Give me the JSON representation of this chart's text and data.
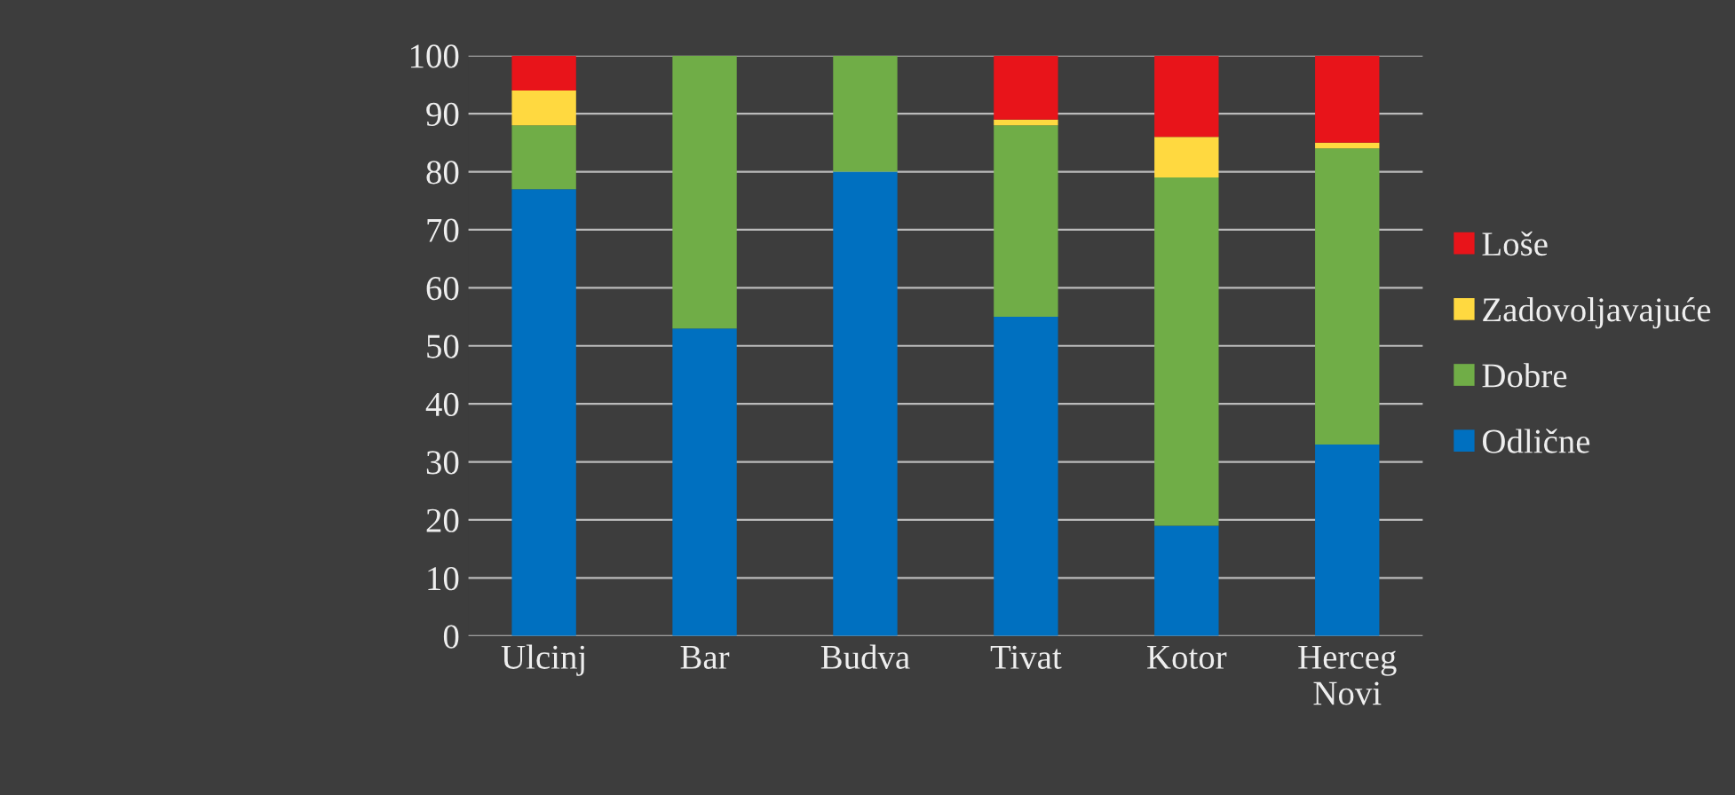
{
  "chart_data": {
    "type": "bar",
    "stacked": true,
    "categories": [
      "Ulcinj",
      "Bar",
      "Budva",
      "Tivat",
      "Kotor",
      "Herceg\nNovi"
    ],
    "series": [
      {
        "name": "Odlične",
        "color": "#0070c0",
        "values": [
          77,
          53,
          80,
          55,
          19,
          33
        ]
      },
      {
        "name": "Dobre",
        "color": "#70ad47",
        "values": [
          11,
          47,
          20,
          33,
          60,
          51
        ]
      },
      {
        "name": "Zadovoljavajuće",
        "color": "#ffd940",
        "values": [
          6,
          0,
          0,
          1,
          7,
          1
        ]
      },
      {
        "name": "Loše",
        "color": "#e8141a",
        "values": [
          6,
          0,
          0,
          11,
          14,
          15
        ]
      }
    ],
    "ylim": [
      0,
      100
    ],
    "yticks": [
      0,
      10,
      20,
      30,
      40,
      50,
      60,
      70,
      80,
      90,
      100
    ],
    "grid": "y",
    "legend": "right"
  }
}
